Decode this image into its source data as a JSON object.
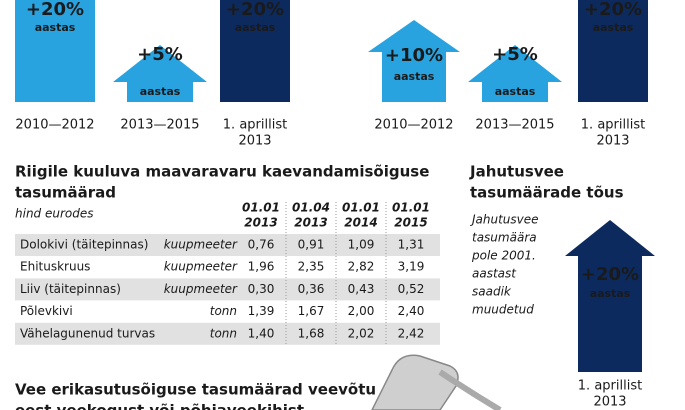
{
  "left_group": [
    {
      "change": "+20%",
      "unit": "aastas",
      "period": [
        "2010—2012"
      ]
    },
    {
      "change": "+5%",
      "unit": "aastas",
      "period": [
        "2013—2015"
      ]
    },
    {
      "change": "+20%",
      "unit": "aastas",
      "period": [
        "1. aprillist",
        "2013"
      ]
    }
  ],
  "right_group": [
    {
      "change": "+10%",
      "unit": "aastas",
      "period": [
        "2010—2012"
      ]
    },
    {
      "change": "+5%",
      "unit": "aastas",
      "period": [
        "2013—2015"
      ]
    },
    {
      "change": "+20%",
      "unit": "aastas",
      "period": [
        "1. aprillist",
        "2013"
      ]
    }
  ],
  "table": {
    "title": [
      "Riigile kuuluva maavaravaru kaevandamisõiguse",
      "tasumäärad"
    ],
    "subtitle": "hind eurodes",
    "columns": [
      [
        "01.01",
        "2013"
      ],
      [
        "01.04",
        "2013"
      ],
      [
        "01.01",
        "2014"
      ],
      [
        "01.01",
        "2015"
      ]
    ],
    "rows": [
      {
        "name": "Dolokivi (täitepinnas)",
        "unit": "kuupmeeter",
        "values": [
          "0,76",
          "0,91",
          "1,09",
          "1,31"
        ]
      },
      {
        "name": "Ehituskruus",
        "unit": "kuupmeeter",
        "values": [
          "1,96",
          "2,35",
          "2,82",
          "3,19"
        ]
      },
      {
        "name": "Liiv (täitepinnas)",
        "unit": "kuupmeeter",
        "values": [
          "0,30",
          "0,36",
          "0,43",
          "0,52"
        ]
      },
      {
        "name": "Põlevkivi",
        "unit": "tonn",
        "values": [
          "1,39",
          "1,67",
          "2,00",
          "2,40"
        ]
      },
      {
        "name": "Vähelagunenud turvas",
        "unit": "tonn",
        "values": [
          "1,40",
          "1,68",
          "2,02",
          "2,42"
        ]
      }
    ]
  },
  "cooling": {
    "title": [
      "Jahutusvee",
      "tasumäärade tõus"
    ],
    "note": [
      "Jahutusvee",
      "tasumäära",
      "pole 2001.",
      "aastast",
      "saadik",
      "muudetud"
    ],
    "change": "+20%",
    "unit": "aastas",
    "period": [
      "1. aprillist",
      "2013"
    ]
  },
  "water": {
    "title": [
      "Vee erikasutusõiguse tasumäärad veevõtu",
      "eest veekogust või põhjaveekihist"
    ]
  }
}
